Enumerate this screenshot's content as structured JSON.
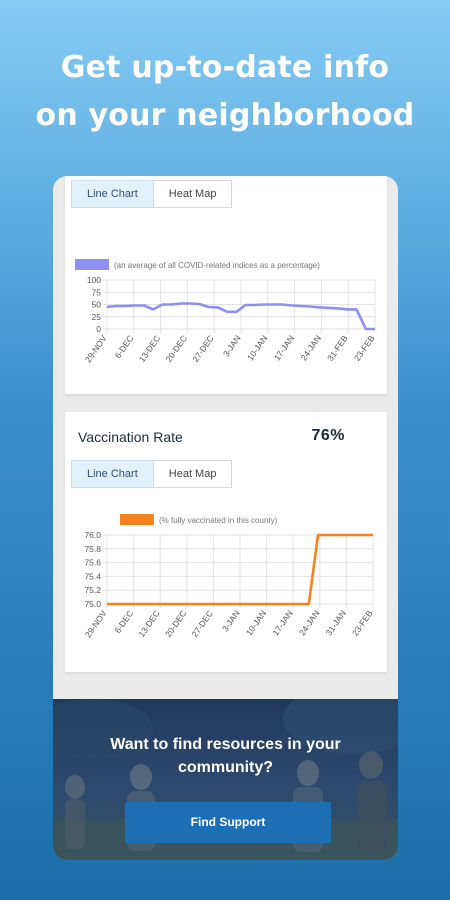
{
  "headline": {
    "line1": "Get up-to-date info",
    "line2": "on your neighborhood"
  },
  "card1": {
    "tabs": {
      "line": "Line Chart",
      "heat": "Heat Map"
    },
    "active_tab": "line"
  },
  "card2": {
    "title": "Vaccination Rate",
    "value": "76%",
    "tabs": {
      "line": "Line Chart",
      "heat": "Heat Map"
    },
    "active_tab": "line"
  },
  "banner": {
    "line1": "Want to find resources in your",
    "line2": "community?",
    "button": "Find Support"
  },
  "colors": {
    "accent": "#1c6fb5",
    "series1": "#8e8ef5",
    "series2": "#f5821f"
  },
  "chart_data": [
    {
      "type": "line",
      "legend": "(an average of all COVID-related indices as a percentage)",
      "x_ticks": [
        "29-NOV",
        "6-DEC",
        "13-DEC",
        "20-DEC",
        "27-DEC",
        "3-JAN",
        "10-JAN",
        "17-JAN",
        "24-JAN",
        "31-FEB",
        "23-FEB"
      ],
      "y_ticks": [
        "0",
        "25",
        "50",
        "75",
        "100"
      ],
      "ylim": [
        0,
        100
      ],
      "series": [
        {
          "values": [
            45,
            47,
            47,
            48,
            48,
            40,
            50,
            50,
            52,
            52,
            51,
            45,
            44,
            35,
            35,
            49,
            49,
            50,
            50,
            50,
            48,
            47,
            46,
            44,
            43,
            42,
            40,
            40,
            0,
            0
          ]
        }
      ]
    },
    {
      "type": "line",
      "legend": "(% fully vaccinated in this county)",
      "x_ticks": [
        "29-NOV",
        "6-DEC",
        "13-DEC",
        "20-DEC",
        "27-DEC",
        "3-JAN",
        "10-JAN",
        "17-JAN",
        "24-JAN",
        "31-JAN",
        "23-FEB"
      ],
      "y_ticks": [
        "75.0",
        "75.2",
        "75.4",
        "75.6",
        "75.8",
        "76.0"
      ],
      "ylim": [
        75.0,
        76.0
      ],
      "series": [
        {
          "values": [
            75.0,
            75.0,
            75.0,
            75.0,
            75.0,
            75.0,
            75.0,
            75.0,
            75.0,
            75.0,
            75.0,
            75.0,
            75.0,
            75.0,
            75.0,
            75.0,
            75.0,
            75.0,
            75.0,
            75.0,
            75.0,
            75.0,
            75.0,
            76.0,
            76.0,
            76.0,
            76.0,
            76.0,
            76.0,
            76.0
          ]
        }
      ]
    }
  ]
}
